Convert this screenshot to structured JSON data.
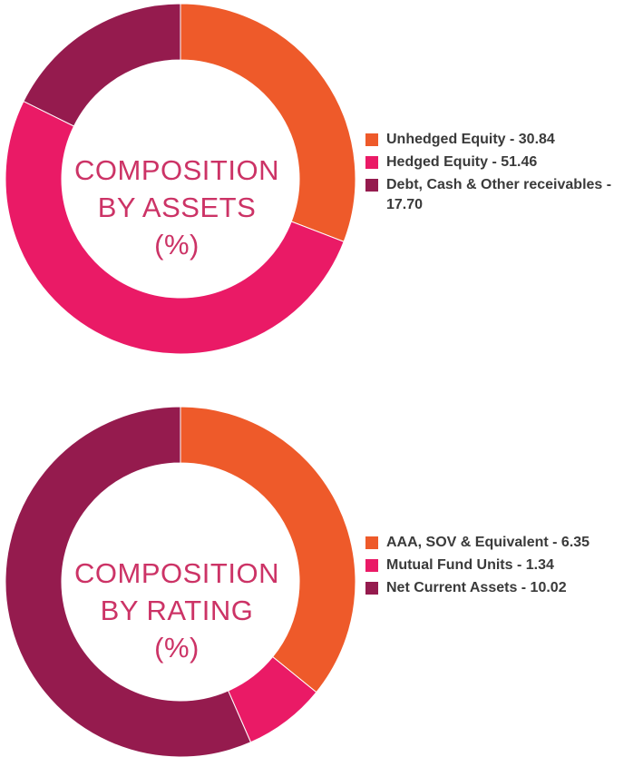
{
  "chart_data": [
    {
      "type": "pie",
      "title_lines": [
        "COMPOSITION",
        "BY ASSETS",
        "(%)"
      ],
      "slices": [
        {
          "label": "Unhedged Equity - 30.84",
          "value": 30.84,
          "color": "#ee5a2a"
        },
        {
          "label": "Hedged Equity - 51.46",
          "value": 51.46,
          "color": "#ea1a66"
        },
        {
          "label": "Debt, Cash & Other receivables - 17.70",
          "value": 17.7,
          "color": "#951b4e"
        }
      ]
    },
    {
      "type": "pie",
      "title_lines": [
        "COMPOSITION",
        "BY RATING",
        "(%)"
      ],
      "slices": [
        {
          "label": "AAA, SOV & Equivalent - 6.35",
          "value": 6.35,
          "color": "#ee5a2a"
        },
        {
          "label": "Mutual Fund Units - 1.34",
          "value": 1.34,
          "color": "#ea1a66"
        },
        {
          "label": "Net Current Assets - 10.02",
          "value": 10.02,
          "color": "#951b4e"
        }
      ]
    }
  ]
}
